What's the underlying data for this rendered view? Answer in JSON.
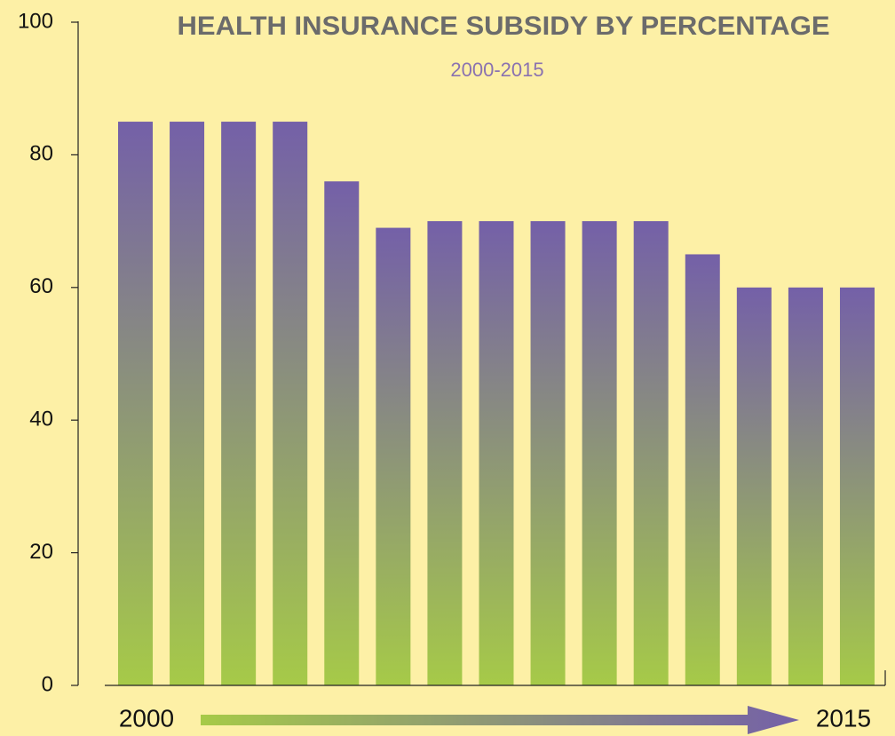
{
  "chart_data": {
    "type": "bar",
    "title": "HEALTH INSURANCE SUBSIDY BY PERCENTAGE",
    "subtitle": "2000-2015",
    "categories": [
      "2000",
      null,
      null,
      null,
      null,
      null,
      null,
      null,
      null,
      null,
      null,
      null,
      null,
      null,
      "2015"
    ],
    "values": [
      85,
      85,
      85,
      85,
      76,
      69,
      70,
      70,
      70,
      70,
      70,
      65,
      60,
      60,
      60
    ],
    "gradient": [
      "#7460a8",
      "#a6ca48"
    ],
    "ylim": [
      0,
      100
    ],
    "yticks": [
      0,
      20,
      40,
      60,
      80,
      100
    ]
  }
}
